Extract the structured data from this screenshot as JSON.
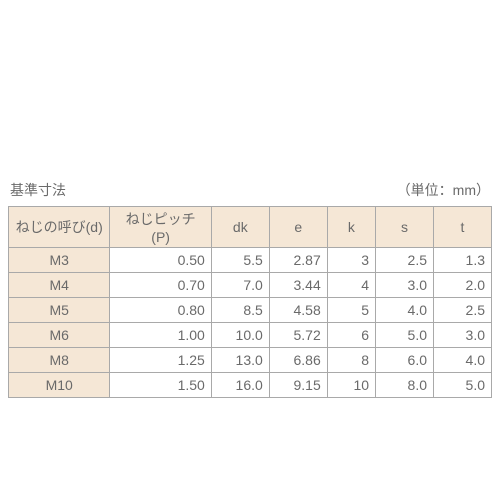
{
  "title": "基準寸法",
  "unit_label": "（単位：mm）",
  "table": {
    "columns": [
      "ねじの呼び(d)",
      "ねじピッチ(P)",
      "dk",
      "e",
      "k",
      "s",
      "t"
    ],
    "rows": [
      [
        "M3",
        "0.50",
        "5.5",
        "2.87",
        "3",
        "2.5",
        "1.3"
      ],
      [
        "M4",
        "0.70",
        "7.0",
        "3.44",
        "4",
        "3.0",
        "2.0"
      ],
      [
        "M5",
        "0.80",
        "8.5",
        "4.58",
        "5",
        "4.0",
        "2.5"
      ],
      [
        "M6",
        "1.00",
        "10.0",
        "5.72",
        "6",
        "5.0",
        "3.0"
      ],
      [
        "M8",
        "1.25",
        "13.0",
        "6.86",
        "8",
        "6.0",
        "4.0"
      ],
      [
        "M10",
        "1.50",
        "16.0",
        "9.15",
        "10",
        "8.0",
        "5.0"
      ]
    ]
  },
  "style": {
    "header_bg": "#f5e7d6",
    "border_color": "#a9a9a9",
    "text_color": "#6a6a6a",
    "font_size": 14
  }
}
